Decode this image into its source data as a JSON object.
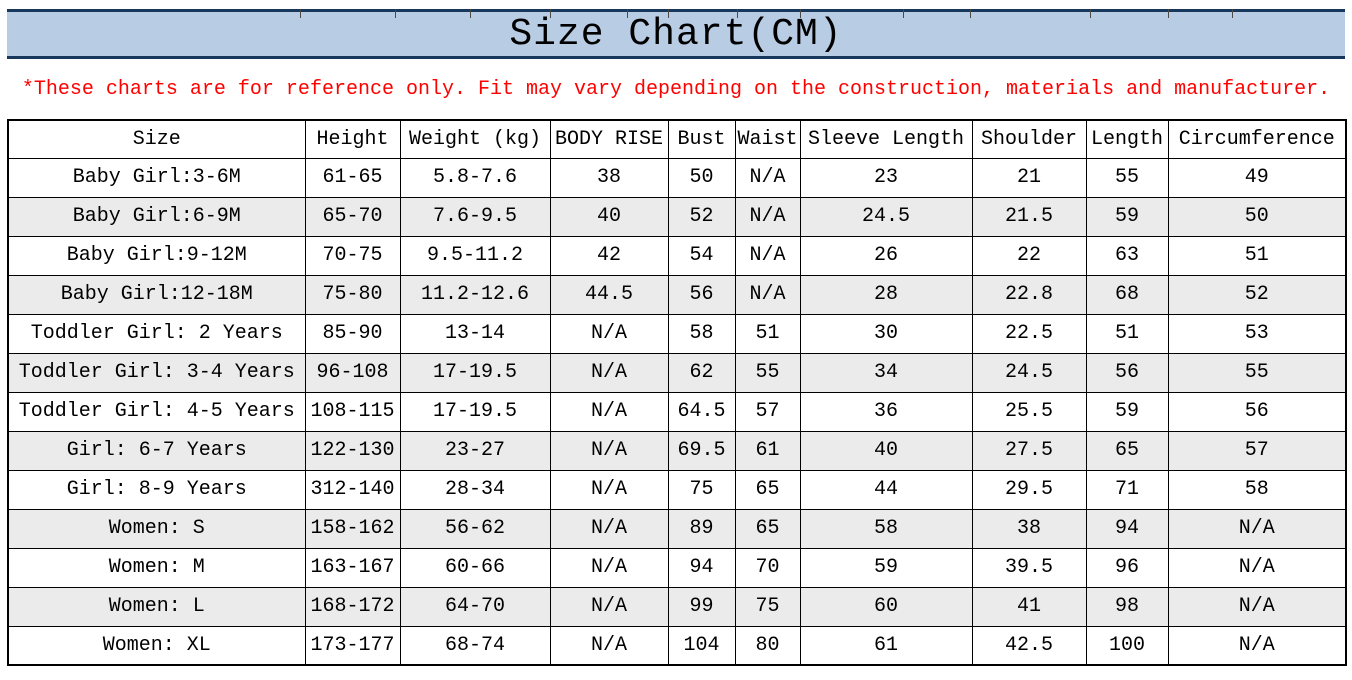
{
  "title": "Size Chart(CM)",
  "note": "*These charts are for reference only. Fit may vary depending on the construction, materials and manufacturer.",
  "colors": {
    "title_bg": "#b8cce4",
    "title_border": "#17375d",
    "note_color": "#ff0000",
    "row_alt_bg": "#ebebeb",
    "border": "#000000"
  },
  "chart_data": {
    "type": "table",
    "title": "Size Chart(CM)",
    "columns": [
      "Size",
      "Height",
      "Weight (kg)",
      "BODY RISE",
      "Bust",
      "Waist",
      "Sleeve Length",
      "Shoulder",
      "Length",
      "Circumference"
    ],
    "rows": [
      [
        "Baby Girl:3-6M",
        "61-65",
        "5.8-7.6",
        "38",
        "50",
        "N/A",
        "23",
        "21",
        "55",
        "49"
      ],
      [
        "Baby Girl:6-9M",
        "65-70",
        "7.6-9.5",
        "40",
        "52",
        "N/A",
        "24.5",
        "21.5",
        "59",
        "50"
      ],
      [
        "Baby Girl:9-12M",
        "70-75",
        "9.5-11.2",
        "42",
        "54",
        "N/A",
        "26",
        "22",
        "63",
        "51"
      ],
      [
        "Baby Girl:12-18M",
        "75-80",
        "11.2-12.6",
        "44.5",
        "56",
        "N/A",
        "28",
        "22.8",
        "68",
        "52"
      ],
      [
        "Toddler Girl: 2 Years",
        "85-90",
        "13-14",
        "N/A",
        "58",
        "51",
        "30",
        "22.5",
        "51",
        "53"
      ],
      [
        "Toddler Girl: 3-4 Years",
        "96-108",
        "17-19.5",
        "N/A",
        "62",
        "55",
        "34",
        "24.5",
        "56",
        "55"
      ],
      [
        "Toddler Girl: 4-5 Years",
        "108-115",
        "17-19.5",
        "N/A",
        "64.5",
        "57",
        "36",
        "25.5",
        "59",
        "56"
      ],
      [
        "Girl: 6-7 Years",
        "122-130",
        "23-27",
        "N/A",
        "69.5",
        "61",
        "40",
        "27.5",
        "65",
        "57"
      ],
      [
        "Girl: 8-9 Years",
        "312-140",
        "28-34",
        "N/A",
        "75",
        "65",
        "44",
        "29.5",
        "71",
        "58"
      ],
      [
        "Women: S",
        "158-162",
        "56-62",
        "N/A",
        "89",
        "65",
        "58",
        "38",
        "94",
        "N/A"
      ],
      [
        "Women: M",
        "163-167",
        "60-66",
        "N/A",
        "94",
        "70",
        "59",
        "39.5",
        "96",
        "N/A"
      ],
      [
        "Women: L",
        "168-172",
        "64-70",
        "N/A",
        "99",
        "75",
        "60",
        "41",
        "98",
        "N/A"
      ],
      [
        "Women: XL",
        "173-177",
        "68-74",
        "N/A",
        "104",
        "80",
        "61",
        "42.5",
        "100",
        "N/A"
      ]
    ]
  }
}
